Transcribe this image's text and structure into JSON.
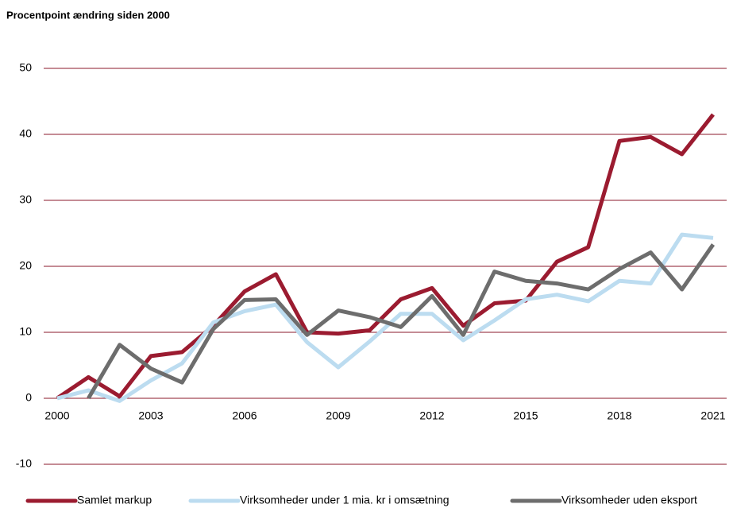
{
  "chart_data": {
    "type": "line",
    "title": "Procentpoint ændring siden 2000",
    "x": [
      2000,
      2001,
      2002,
      2003,
      2004,
      2005,
      2006,
      2007,
      2008,
      2009,
      2010,
      2011,
      2012,
      2013,
      2014,
      2015,
      2016,
      2017,
      2018,
      2019,
      2020,
      2021
    ],
    "xlim": [
      2000,
      2021
    ],
    "xticks": [
      2000,
      2003,
      2006,
      2009,
      2012,
      2015,
      2018,
      2021
    ],
    "ylim": [
      -10,
      50
    ],
    "yticks": [
      -10,
      0,
      10,
      20,
      30,
      40,
      50
    ],
    "grid": true,
    "grid_color": "#8b1a2b",
    "legend": "bottom",
    "series": [
      {
        "name": "Samlet markup",
        "color": "#9b1b30",
        "values": [
          0,
          3.2,
          0.3,
          6.4,
          7.0,
          11,
          16.2,
          18.8,
          10,
          9.8,
          10.3,
          15,
          16.7,
          11,
          14.4,
          14.8,
          20.7,
          22.9,
          39,
          39.6,
          37,
          43
        ]
      },
      {
        "name": "Virksomheder under 1 mia. kr i omsætning",
        "color": "#bcdcf0",
        "values": [
          0,
          1.2,
          -0.4,
          2.7,
          5.3,
          11.5,
          13.2,
          14.2,
          8.5,
          4.7,
          8.6,
          12.8,
          12.8,
          8.8,
          11.8,
          15,
          15.7,
          14.7,
          17.8,
          17.4,
          24.8,
          24.3
        ]
      },
      {
        "name": "Virksomheder uden eksport",
        "color": "#6d6d6d",
        "values": [
          null,
          0,
          8.1,
          4.5,
          2.4,
          10.5,
          14.9,
          15,
          9.6,
          13.3,
          12.3,
          10.8,
          15.5,
          9.6,
          19.2,
          17.8,
          17.4,
          16.5,
          19.6,
          22.1,
          16.5,
          23.3
        ]
      }
    ]
  }
}
